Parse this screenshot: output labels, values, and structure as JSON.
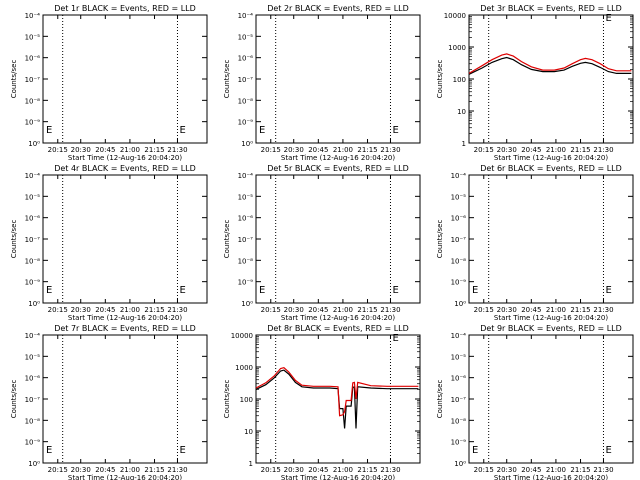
{
  "chart_data": [
    {
      "title": "Det 1r BLACK = Events, RED = LLD",
      "type": "line",
      "ylabel": "Counts/sec",
      "xlabel": "Start Time (12-Aug-16 20:04:20)",
      "x_ticks": [
        "20:15",
        "20:30",
        "20:45",
        "21:00",
        "21:15",
        "21:30"
      ],
      "y_ticks": [
        "10⁻⁴",
        "10⁻⁵",
        "10⁻⁶",
        "10⁻⁷",
        "10⁻⁸",
        "10⁻⁹",
        "10⁰"
      ],
      "scale": "decreasing-exponent",
      "markers": [
        "E",
        "E"
      ],
      "series": []
    },
    {
      "title": "Det 2r BLACK = Events, RED = LLD",
      "type": "line",
      "ylabel": "Counts/sec",
      "xlabel": "Start Time (12-Aug-16 20:04:20)",
      "x_ticks": [
        "20:15",
        "20:30",
        "20:45",
        "21:00",
        "21:15",
        "21:30"
      ],
      "y_ticks": [
        "10⁻⁴",
        "10⁻⁵",
        "10⁻⁶",
        "10⁻⁷",
        "10⁻⁸",
        "10⁻⁹",
        "10⁰"
      ],
      "scale": "decreasing-exponent",
      "markers": [
        "E",
        "E"
      ],
      "series": []
    },
    {
      "title": "Det 3r BLACK = Events, RED = LLD",
      "type": "line",
      "ylabel": "Counts/sec",
      "xlabel": "Start Time (12-Aug-16 20:04:20)",
      "x_ticks": [
        "20:15",
        "20:30",
        "20:45",
        "21:00",
        "21:15",
        "21:30"
      ],
      "y_ticks": [
        "10000",
        "1000",
        "100",
        "10",
        "1"
      ],
      "scale": "log",
      "ylim": [
        1,
        10000
      ],
      "markers": [
        "E"
      ],
      "series": [
        {
          "color": "#000000",
          "points": [
            [
              0,
              140
            ],
            [
              8,
              220
            ],
            [
              14,
              330
            ],
            [
              20,
              430
            ],
            [
              23,
              470
            ],
            [
              27,
              400
            ],
            [
              32,
              280
            ],
            [
              38,
              200
            ],
            [
              45,
              170
            ],
            [
              52,
              170
            ],
            [
              58,
              190
            ],
            [
              63,
              250
            ],
            [
              68,
              310
            ],
            [
              71,
              330
            ],
            [
              75,
              300
            ],
            [
              80,
              230
            ],
            [
              85,
              170
            ],
            [
              90,
              150
            ],
            [
              95,
              150
            ],
            [
              99,
              150
            ]
          ]
        },
        {
          "color": "#dd0000",
          "points": [
            [
              0,
              150
            ],
            [
              8,
              260
            ],
            [
              14,
              400
            ],
            [
              20,
              560
            ],
            [
              23,
              610
            ],
            [
              27,
              520
            ],
            [
              32,
              350
            ],
            [
              38,
              240
            ],
            [
              45,
              190
            ],
            [
              52,
              190
            ],
            [
              58,
              220
            ],
            [
              63,
              300
            ],
            [
              68,
              400
            ],
            [
              71,
              440
            ],
            [
              75,
              400
            ],
            [
              80,
              300
            ],
            [
              85,
              210
            ],
            [
              90,
              180
            ],
            [
              95,
              180
            ],
            [
              99,
              180
            ]
          ]
        }
      ]
    },
    {
      "title": "Det 4r BLACK = Events, RED = LLD",
      "type": "line",
      "ylabel": "Counts/sec",
      "xlabel": "Start Time (12-Aug-16 20:04:20)",
      "x_ticks": [
        "20:15",
        "20:30",
        "20:45",
        "21:00",
        "21:15",
        "21:30"
      ],
      "y_ticks": [
        "10⁻⁴",
        "10⁻⁵",
        "10⁻⁶",
        "10⁻⁷",
        "10⁻⁸",
        "10⁻⁹",
        "10⁰"
      ],
      "scale": "decreasing-exponent",
      "markers": [
        "E",
        "E"
      ],
      "series": []
    },
    {
      "title": "Det 5r BLACK = Events, RED = LLD",
      "type": "line",
      "ylabel": "Counts/sec",
      "xlabel": "Start Time (12-Aug-16 20:04:20)",
      "x_ticks": [
        "20:15",
        "20:30",
        "20:45",
        "21:00",
        "21:15",
        "21:30"
      ],
      "y_ticks": [
        "10⁻⁴",
        "10⁻⁵",
        "10⁻⁶",
        "10⁻⁷",
        "10⁻⁸",
        "10⁻⁹",
        "10⁰"
      ],
      "scale": "decreasing-exponent",
      "markers": [
        "E",
        "E"
      ],
      "series": []
    },
    {
      "title": "Det 6r BLACK = Events, RED = LLD",
      "type": "line",
      "ylabel": "Counts/sec",
      "xlabel": "Start Time (12-Aug-16 20:04:20)",
      "x_ticks": [
        "20:15",
        "20:30",
        "20:45",
        "21:00",
        "21:15",
        "21:30"
      ],
      "y_ticks": [
        "10⁻⁴",
        "10⁻⁵",
        "10⁻⁶",
        "10⁻⁷",
        "10⁻⁸",
        "10⁻⁹",
        "10⁰"
      ],
      "scale": "decreasing-exponent",
      "markers": [
        "E",
        "E"
      ],
      "series": []
    },
    {
      "title": "Det 7r BLACK = Events, RED = LLD",
      "type": "line",
      "ylabel": "Counts/sec",
      "xlabel": "Start Time (12-Aug-16 20:04:20)",
      "x_ticks": [
        "20:15",
        "20:30",
        "20:45",
        "21:00",
        "21:15",
        "21:30"
      ],
      "y_ticks": [
        "10⁻⁴",
        "10⁻⁵",
        "10⁻⁶",
        "10⁻⁷",
        "10⁻⁸",
        "10⁻⁹",
        "10⁰"
      ],
      "scale": "decreasing-exponent",
      "markers": [
        "E",
        "E"
      ],
      "series": []
    },
    {
      "title": "Det 8r BLACK = Events, RED = LLD",
      "type": "line",
      "ylabel": "Counts/sec",
      "xlabel": "Start Time (12-Aug-16 20:04:20)",
      "x_ticks": [
        "20:15",
        "20:30",
        "20:45",
        "21:00",
        "21:15",
        "21:30"
      ],
      "y_ticks": [
        "10000",
        "1000",
        "100",
        "10",
        "1"
      ],
      "scale": "log",
      "ylim": [
        1,
        10000
      ],
      "markers": [
        "E"
      ],
      "series": [
        {
          "color": "#000000",
          "points": [
            [
              0,
              200
            ],
            [
              6,
              280
            ],
            [
              11,
              450
            ],
            [
              15,
              750
            ],
            [
              17,
              800
            ],
            [
              20,
              600
            ],
            [
              24,
              330
            ],
            [
              28,
              240
            ],
            [
              35,
              220
            ],
            [
              45,
              220
            ],
            [
              50,
              210
            ],
            [
              51,
              50
            ],
            [
              53,
              50
            ],
            [
              54,
              12
            ],
            [
              55,
              60
            ],
            [
              58,
              60
            ],
            [
              59,
              230
            ],
            [
              60,
              240
            ],
            [
              61,
              12
            ],
            [
              62,
              240
            ],
            [
              70,
              220
            ],
            [
              80,
              210
            ],
            [
              90,
              210
            ],
            [
              99,
              210
            ]
          ]
        },
        {
          "color": "#dd0000",
          "points": [
            [
              0,
              220
            ],
            [
              6,
              320
            ],
            [
              11,
              520
            ],
            [
              15,
              900
            ],
            [
              17,
              950
            ],
            [
              20,
              700
            ],
            [
              24,
              380
            ],
            [
              28,
              270
            ],
            [
              35,
              250
            ],
            [
              45,
              250
            ],
            [
              50,
              240
            ],
            [
              51,
              30
            ],
            [
              53,
              32
            ],
            [
              54,
              40
            ],
            [
              55,
              90
            ],
            [
              58,
              90
            ],
            [
              59,
              320
            ],
            [
              60,
              330
            ],
            [
              61,
              100
            ],
            [
              62,
              330
            ],
            [
              70,
              260
            ],
            [
              80,
              250
            ],
            [
              90,
              250
            ],
            [
              99,
              250
            ]
          ]
        }
      ]
    },
    {
      "title": "Det 9r BLACK = Events, RED = LLD",
      "type": "line",
      "ylabel": "Counts/sec",
      "xlabel": "Start Time (12-Aug-16 20:04:20)",
      "x_ticks": [
        "20:15",
        "20:30",
        "20:45",
        "21:00",
        "21:15",
        "21:30"
      ],
      "y_ticks": [
        "10⁻⁴",
        "10⁻⁵",
        "10⁻⁶",
        "10⁻⁷",
        "10⁻⁸",
        "10⁻⁹",
        "10⁰"
      ],
      "scale": "decreasing-exponent",
      "markers": [
        "E",
        "E"
      ],
      "series": []
    }
  ]
}
